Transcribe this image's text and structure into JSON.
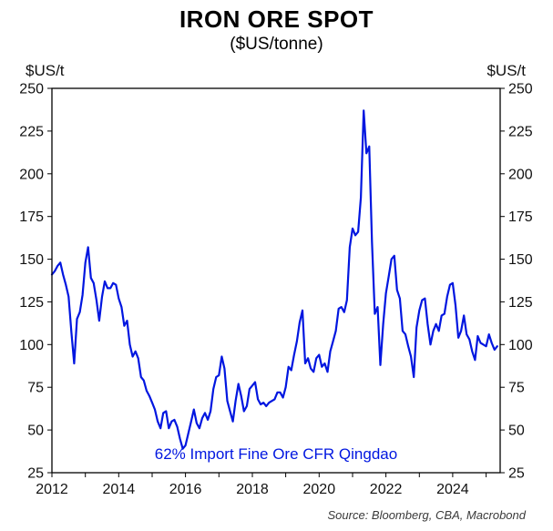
{
  "header": {
    "title": "IRON ORE SPOT",
    "subtitle": "($US/tonne)"
  },
  "axes": {
    "left_unit": "$US/t",
    "right_unit": "$US/t"
  },
  "annotation": {
    "text": "62% Import Fine Ore CFR Qingdao",
    "color": "#0016e0"
  },
  "footer": {
    "source": "Source: Bloomberg, CBA, Macrobond"
  },
  "chart_data": {
    "type": "line",
    "title": "IRON ORE SPOT",
    "subtitle": "($US/tonne)",
    "ylabel_left": "$US/t",
    "ylabel_right": "$US/t",
    "ylim": [
      25,
      250
    ],
    "yticks": [
      25,
      50,
      75,
      100,
      125,
      150,
      175,
      200,
      225,
      250
    ],
    "xlim": [
      2012,
      2025.42
    ],
    "xticks": [
      2012,
      2014,
      2016,
      2018,
      2020,
      2022,
      2024
    ],
    "x_minor_tick_interval": 1,
    "grid": false,
    "legend": "none",
    "line_color": "#0016e0",
    "annotation": "62% Import Fine Ore CFR Qingdao",
    "series": [
      {
        "name": "62% Import Fine Ore CFR Qingdao",
        "x_unit": "decimal_year_monthly",
        "x_start": 2012.0,
        "x_step": 0.0833333,
        "values": [
          141,
          143,
          146,
          148,
          141,
          135,
          128,
          107,
          89,
          115,
          119,
          129,
          148,
          157,
          139,
          136,
          126,
          114,
          128,
          137,
          133,
          133,
          136,
          135,
          127,
          122,
          111,
          114,
          100,
          93,
          96,
          92,
          81,
          79,
          73,
          70,
          66,
          62,
          55,
          51,
          60,
          61,
          51,
          55,
          56,
          52,
          45,
          39,
          41,
          48,
          55,
          62,
          54,
          51,
          57,
          60,
          56,
          61,
          74,
          81,
          82,
          93,
          86,
          67,
          61,
          55,
          67,
          77,
          70,
          61,
          64,
          74,
          76,
          78,
          68,
          65,
          66,
          64,
          66,
          67,
          68,
          72,
          72,
          69,
          75,
          87,
          85,
          94,
          102,
          113,
          120,
          89,
          92,
          86,
          84,
          92,
          94,
          87,
          89,
          84,
          96,
          102,
          108,
          121,
          122,
          119,
          126,
          157,
          168,
          164,
          166,
          186,
          237,
          212,
          216,
          160,
          118,
          122,
          88,
          112,
          130,
          140,
          150,
          152,
          132,
          127,
          108,
          106,
          99,
          93,
          81,
          110,
          120,
          126,
          127,
          112,
          100,
          108,
          112,
          108,
          117,
          118,
          128,
          135,
          136,
          123,
          104,
          108,
          117,
          106,
          103,
          96,
          91,
          105,
          101,
          100,
          99,
          106,
          101,
          97,
          99
        ]
      }
    ]
  }
}
